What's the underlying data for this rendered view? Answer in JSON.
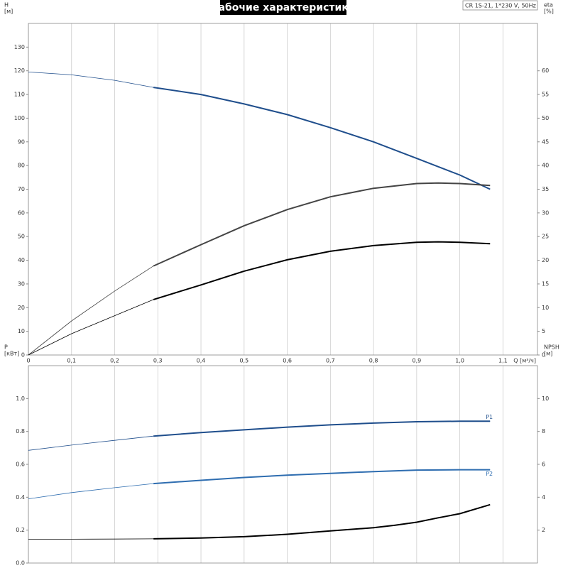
{
  "chart_data": [
    {
      "type": "line",
      "title": "Рабочие характеристики",
      "annotation": "CR 1S-21, 1*230 V, 50Hz",
      "y_label": "H",
      "y_unit": "[м]",
      "y2_label": "eta",
      "y2_unit": "[%]",
      "x_label": "Q [м³/ч]",
      "xlim": [
        0,
        1.18
      ],
      "xticks": [
        0,
        {
          "value": 0.1,
          "label": "0,1"
        },
        {
          "value": 0.2,
          "label": "0,2"
        },
        {
          "value": 0.3,
          "label": "0,3"
        },
        {
          "value": 0.4,
          "label": "0,4"
        },
        {
          "value": 0.5,
          "label": "0,5"
        },
        {
          "value": 0.6,
          "label": "0,6"
        },
        {
          "value": 0.7,
          "label": "0,7"
        },
        {
          "value": 0.8,
          "label": "0,8"
        },
        {
          "value": 0.9,
          "label": "0,9"
        },
        {
          "value": 1.0,
          "label": "1,0"
        },
        {
          "value": 1.1,
          "label": "1,1"
        }
      ],
      "ylim": [
        0,
        140
      ],
      "yticks": [
        0,
        10,
        20,
        30,
        40,
        50,
        60,
        70,
        80,
        90,
        100,
        110,
        120,
        130
      ],
      "y2lim": [
        0,
        70
      ],
      "y2ticks": [
        0,
        5,
        10,
        15,
        20,
        25,
        30,
        35,
        40,
        45,
        50,
        55,
        60
      ],
      "grid": true,
      "bold_from": 0.29,
      "series": [
        {
          "color": "#1f4e8c",
          "x": [
            0,
            0.1,
            0.2,
            0.29,
            0.4,
            0.5,
            0.6,
            0.7,
            0.8,
            0.9,
            1.0,
            1.07
          ],
          "values": [
            119.5,
            118.3,
            116,
            113,
            110,
            106,
            101.5,
            96,
            90,
            83,
            76,
            70
          ]
        },
        {
          "color": "#444444",
          "axis": "y2",
          "x": [
            0,
            0.1,
            0.2,
            0.29,
            0.4,
            0.5,
            0.6,
            0.7,
            0.8,
            0.9,
            0.95,
            1.0,
            1.07
          ],
          "values": [
            0,
            7.2,
            13.5,
            18.8,
            23.3,
            27.3,
            30.7,
            33.4,
            35.2,
            36.2,
            36.3,
            36.2,
            35.8
          ]
        },
        {
          "color": "#000000",
          "axis": "y2",
          "x": [
            0,
            0.1,
            0.2,
            0.29,
            0.4,
            0.5,
            0.6,
            0.7,
            0.8,
            0.9,
            0.95,
            1.0,
            1.07
          ],
          "values": [
            0,
            4.5,
            8.3,
            11.7,
            14.8,
            17.7,
            20.1,
            21.9,
            23.1,
            23.8,
            23.9,
            23.8,
            23.5
          ]
        }
      ]
    },
    {
      "type": "line",
      "y_label": "P",
      "y_unit": "[кВт]",
      "y2_label": "NPSH",
      "y2_unit": "[м]",
      "xlim": [
        0,
        1.18
      ],
      "ylim": [
        0,
        1.2
      ],
      "yticks": [
        {
          "value": 0,
          "label": "0.0"
        },
        0.2,
        0.4,
        0.6,
        0.8,
        {
          "value": 1,
          "label": "1.0"
        }
      ],
      "y2lim": [
        0,
        12
      ],
      "y2ticks": [
        2,
        4,
        6,
        8,
        10
      ],
      "grid": true,
      "bold_from": 0.29,
      "series": [
        {
          "name": "P1",
          "color": "#1f4e8c",
          "x": [
            0,
            0.1,
            0.2,
            0.29,
            0.4,
            0.5,
            0.6,
            0.7,
            0.8,
            0.9,
            1.0,
            1.07
          ],
          "values": [
            0.685,
            0.717,
            0.746,
            0.772,
            0.793,
            0.81,
            0.826,
            0.84,
            0.851,
            0.859,
            0.862,
            0.862
          ]
        },
        {
          "name": "P2",
          "color": "#2e6db0",
          "x": [
            0,
            0.1,
            0.2,
            0.29,
            0.4,
            0.5,
            0.6,
            0.7,
            0.8,
            0.9,
            1.0,
            1.07
          ],
          "values": [
            0.39,
            0.428,
            0.458,
            0.483,
            0.503,
            0.52,
            0.534,
            0.545,
            0.556,
            0.565,
            0.567,
            0.567
          ]
        },
        {
          "color": "#000000",
          "axis": "y2",
          "x": [
            0,
            0.1,
            0.2,
            0.29,
            0.4,
            0.5,
            0.6,
            0.7,
            0.8,
            0.85,
            0.9,
            0.95,
            1.0,
            1.07
          ],
          "values": [
            1.45,
            1.45,
            1.46,
            1.47,
            1.52,
            1.6,
            1.75,
            1.95,
            2.15,
            2.3,
            2.48,
            2.75,
            3.0,
            3.55
          ]
        }
      ]
    }
  ]
}
